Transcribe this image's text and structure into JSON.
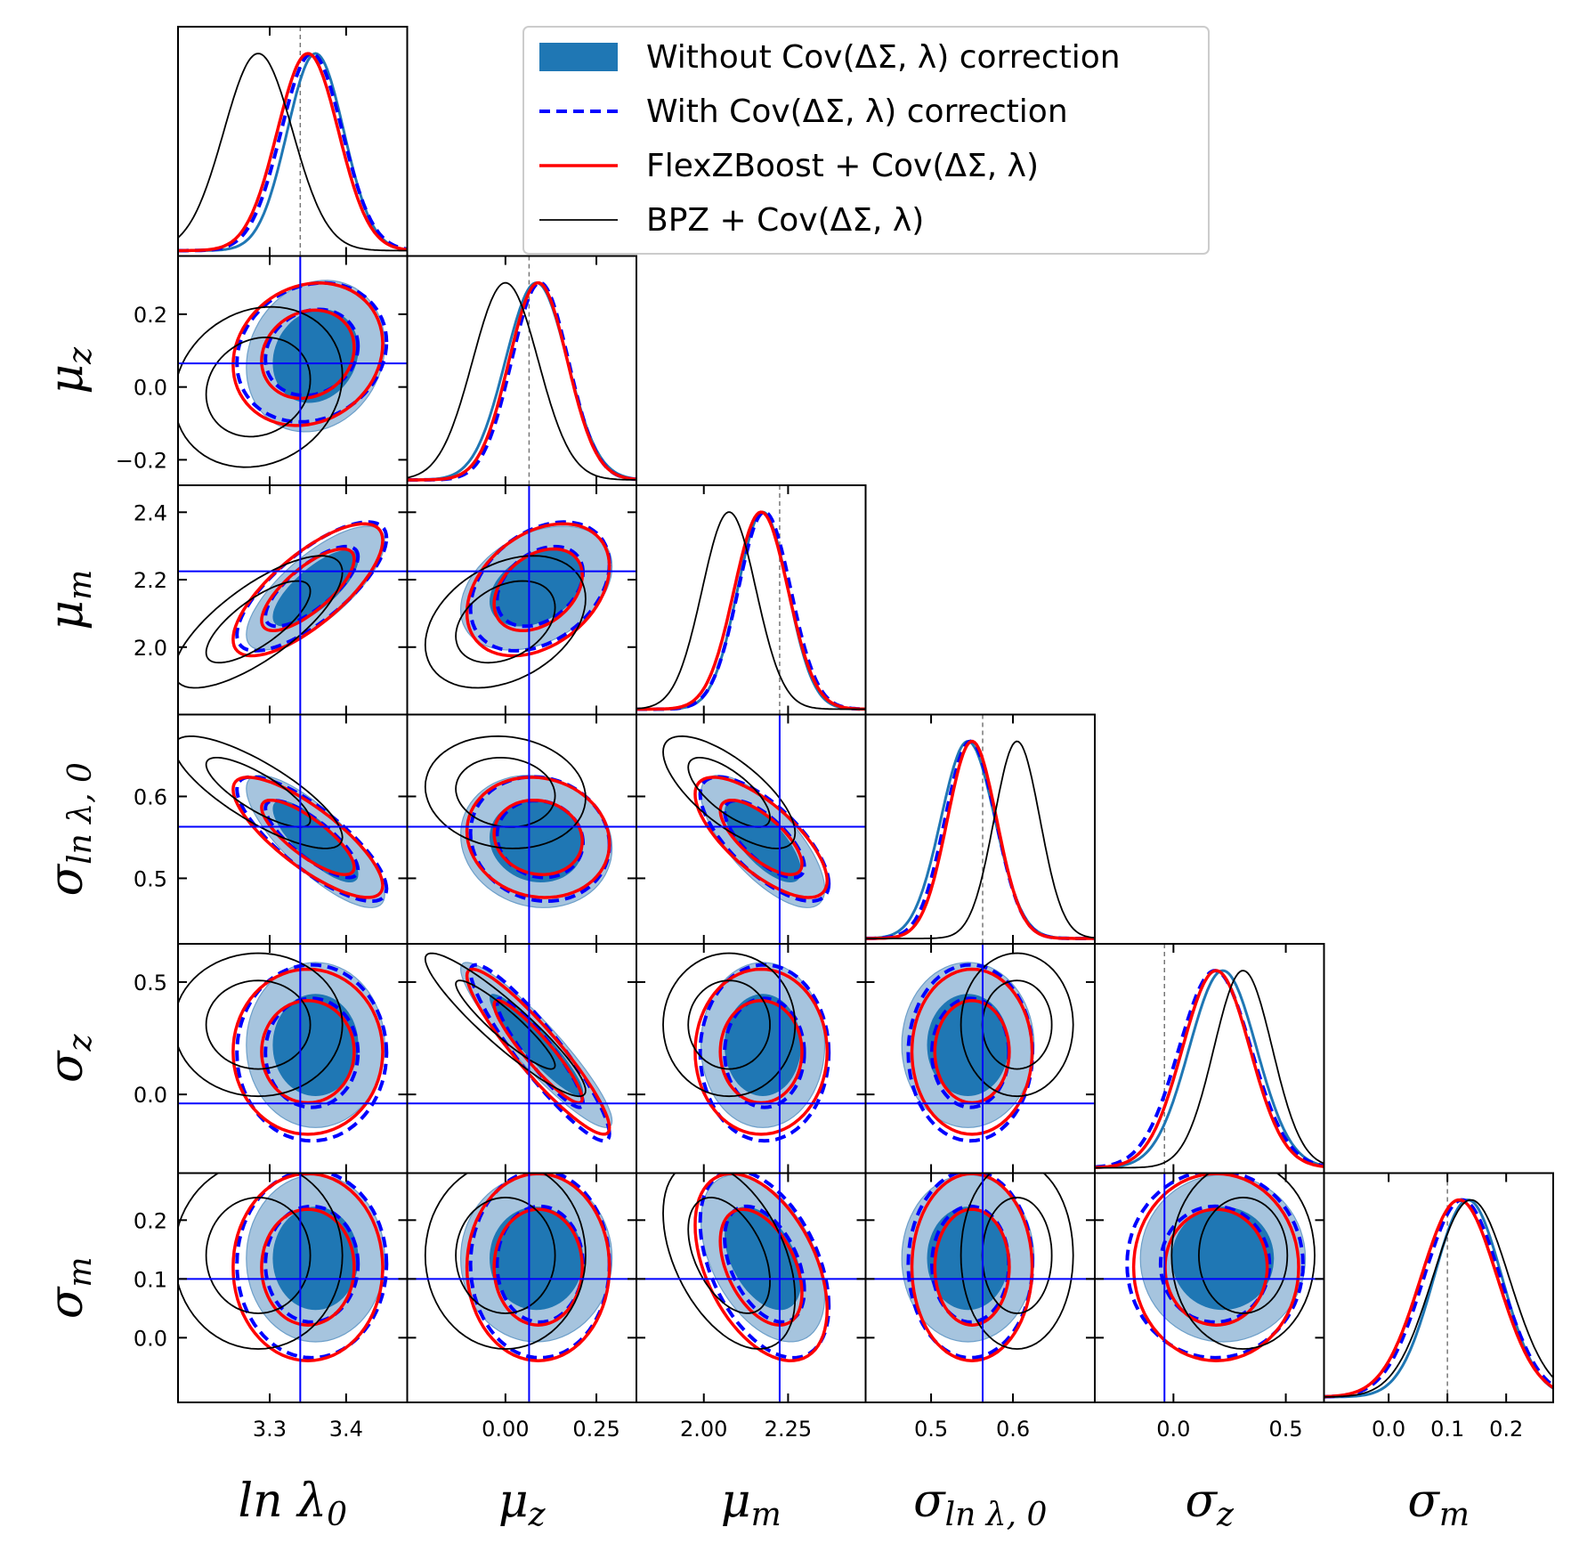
{
  "chart_data": {
    "type": "scatter",
    "subtype": "corner-plot",
    "title": "",
    "parameters": [
      {
        "key": "lnlam",
        "label": "ln λ",
        "sub": "0",
        "range": [
          3.18,
          3.48
        ],
        "ticks": [
          3.3,
          3.4
        ],
        "tick_labels": [
          "3.3",
          "3.4"
        ],
        "truth": 3.34
      },
      {
        "key": "muz",
        "label": "μ",
        "sub": "z",
        "range": [
          -0.27,
          0.36
        ],
        "ticks": [
          -0.2,
          0.0,
          0.2
        ],
        "tick_labels": [
          "−0.2",
          "0.0",
          "0.2"
        ],
        "x_ticks": [
          0.0,
          0.25
        ],
        "x_tick_labels": [
          "0.00",
          "0.25"
        ],
        "truth": 0.065
      },
      {
        "key": "mum",
        "label": "μ",
        "sub": "m",
        "range": [
          1.8,
          2.48
        ],
        "ticks": [
          2.0,
          2.2,
          2.4
        ],
        "tick_labels": [
          "2.0",
          "2.2",
          "2.4"
        ],
        "x_ticks": [
          2.0,
          2.25
        ],
        "x_tick_labels": [
          "2.00",
          "2.25"
        ],
        "truth": 2.225
      },
      {
        "key": "sig",
        "label": "σ",
        "sub": "ln λ, 0",
        "range": [
          0.42,
          0.7
        ],
        "ticks": [
          0.5,
          0.6
        ],
        "tick_labels": [
          "0.5",
          "0.6"
        ],
        "truth": 0.563
      },
      {
        "key": "sigz",
        "label": "σ",
        "sub": "z",
        "range": [
          -0.35,
          0.67
        ],
        "ticks": [
          0.0,
          0.5
        ],
        "tick_labels": [
          "0.0",
          "0.5"
        ],
        "truth": -0.04
      },
      {
        "key": "sigm",
        "label": "σ",
        "sub": "m",
        "range": [
          -0.11,
          0.28
        ],
        "ticks": [
          0.0,
          0.1,
          0.2
        ],
        "tick_labels": [
          "0.0",
          "0.1",
          "0.2"
        ],
        "truth": 0.1
      }
    ],
    "series": [
      {
        "name": "Without Cov(ΔΣ, λ) correction",
        "style": "filled",
        "color": "#1f77b4",
        "fill_inner": "#1f77b4",
        "fill_outer": "#a6c4de",
        "means": [
          3.36,
          0.085,
          2.175,
          0.545,
          0.22,
          0.135
        ],
        "stds": [
          0.037,
          0.085,
          0.075,
          0.033,
          0.15,
          0.058
        ]
      },
      {
        "name": "With Cov(ΔΣ, λ) correction",
        "style": "dashed",
        "color": "#0000ff",
        "means": [
          3.355,
          0.095,
          2.18,
          0.548,
          0.185,
          0.125
        ],
        "stds": [
          0.04,
          0.078,
          0.078,
          0.031,
          0.16,
          0.065
        ]
      },
      {
        "name": "FlexZBoost + Cov(ΔΣ, λ)",
        "style": "solid",
        "color": "#ff0000",
        "means": [
          3.35,
          0.09,
          2.17,
          0.55,
          0.19,
          0.12
        ],
        "stds": [
          0.04,
          0.08,
          0.08,
          0.03,
          0.15,
          0.065
        ]
      },
      {
        "name": "BPZ + Cov(ΔΣ, λ)",
        "style": "thin",
        "color": "#000000",
        "means": [
          3.285,
          0.0,
          2.075,
          0.605,
          0.31,
          0.14
        ],
        "stds": [
          0.045,
          0.09,
          0.08,
          0.028,
          0.13,
          0.065
        ]
      }
    ],
    "contour_levels": [
      "68%",
      "95%"
    ],
    "legend_position": "top-right of the corner",
    "grid": false
  }
}
